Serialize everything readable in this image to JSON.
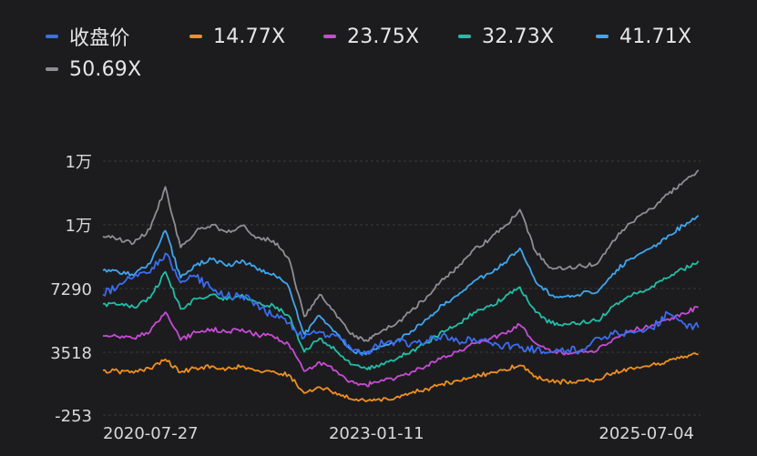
{
  "chart_data": {
    "type": "line",
    "x_ticks": [
      "2020-07-27",
      "2023-01-11",
      "2025-07-04"
    ],
    "y_ticks": [
      "1万",
      "1万",
      "7290",
      "3518",
      "-253"
    ],
    "ylim": [
      -253,
      14831
    ],
    "grid": true,
    "legend_position": "top",
    "series": [
      {
        "name": "收盘价",
        "color": "#3b6df0",
        "points": [
          [
            "2020-07-27",
            6900
          ],
          [
            "2020-09-15",
            7450
          ],
          [
            "2020-11-05",
            7950
          ],
          [
            "2020-12-29",
            8200
          ],
          [
            "2021-02-17",
            9350
          ],
          [
            "2021-04-08",
            7600
          ],
          [
            "2021-05-28",
            7950
          ],
          [
            "2021-07-19",
            7250
          ],
          [
            "2021-09-07",
            6800
          ],
          [
            "2021-10-27",
            6800
          ],
          [
            "2021-12-17",
            6300
          ],
          [
            "2022-02-07",
            5600
          ],
          [
            "2022-03-29",
            5200
          ],
          [
            "2022-05-19",
            4350
          ],
          [
            "2022-07-08",
            4700
          ],
          [
            "2022-08-29",
            4450
          ],
          [
            "2022-10-18",
            3750
          ],
          [
            "2022-12-08",
            3450
          ],
          [
            "2023-01-11",
            3900
          ],
          [
            "2023-03-16",
            4150
          ],
          [
            "2023-05-05",
            4000
          ],
          [
            "2023-06-26",
            4200
          ],
          [
            "2023-08-15",
            4500
          ],
          [
            "2023-10-05",
            4150
          ],
          [
            "2023-11-27",
            4300
          ],
          [
            "2024-01-16",
            4050
          ],
          [
            "2024-03-06",
            3900
          ],
          [
            "2024-04-26",
            3750
          ],
          [
            "2024-06-17",
            3600
          ],
          [
            "2024-08-06",
            3500
          ],
          [
            "2024-09-25",
            3550
          ],
          [
            "2024-11-15",
            3650
          ],
          [
            "2025-01-06",
            4350
          ],
          [
            "2025-02-25",
            4550
          ],
          [
            "2025-04-16",
            4650
          ],
          [
            "2025-07-04",
            4900
          ],
          [
            "2025-08-25",
            5800
          ],
          [
            "2025-10-14",
            5200
          ],
          [
            "2025-12-03",
            4950
          ]
        ]
      },
      {
        "name": "14.77X",
        "color": "#f0901e",
        "points": [
          [
            "2020-07-27",
            2400
          ],
          [
            "2020-09-15",
            2350
          ],
          [
            "2020-11-05",
            2250
          ],
          [
            "2020-12-29",
            2500
          ],
          [
            "2021-02-17",
            3050
          ],
          [
            "2021-04-08",
            2300
          ],
          [
            "2021-05-28",
            2550
          ],
          [
            "2021-07-19",
            2650
          ],
          [
            "2021-09-07",
            2500
          ],
          [
            "2021-10-27",
            2650
          ],
          [
            "2021-12-17",
            2400
          ],
          [
            "2022-02-07",
            2350
          ],
          [
            "2022-03-29",
            2150
          ],
          [
            "2022-05-19",
            1050
          ],
          [
            "2022-07-08",
            1400
          ],
          [
            "2022-08-29",
            1100
          ],
          [
            "2022-10-18",
            700
          ],
          [
            "2022-12-08",
            550
          ],
          [
            "2023-01-11",
            650
          ],
          [
            "2023-03-16",
            800
          ],
          [
            "2023-05-05",
            1050
          ],
          [
            "2023-06-26",
            1300
          ],
          [
            "2023-08-15",
            1600
          ],
          [
            "2023-10-05",
            1800
          ],
          [
            "2023-11-27",
            2100
          ],
          [
            "2024-01-16",
            2200
          ],
          [
            "2024-03-06",
            2450
          ],
          [
            "2024-04-26",
            2700
          ],
          [
            "2024-06-17",
            2050
          ],
          [
            "2024-08-06",
            1750
          ],
          [
            "2024-09-25",
            1700
          ],
          [
            "2024-11-15",
            1800
          ],
          [
            "2025-01-06",
            1850
          ],
          [
            "2025-02-25",
            2250
          ],
          [
            "2025-04-16",
            2500
          ],
          [
            "2025-07-04",
            2750
          ],
          [
            "2025-08-25",
            2950
          ],
          [
            "2025-10-14",
            3150
          ],
          [
            "2025-12-03",
            3350
          ]
        ]
      },
      {
        "name": "23.75X",
        "color": "#c74bd6",
        "points": [
          [
            "2020-07-27",
            4450
          ],
          [
            "2020-09-15",
            4400
          ],
          [
            "2020-11-05",
            4300
          ],
          [
            "2020-12-29",
            4700
          ],
          [
            "2021-02-17",
            5850
          ],
          [
            "2021-04-08",
            4200
          ],
          [
            "2021-05-28",
            4650
          ],
          [
            "2021-07-19",
            4850
          ],
          [
            "2021-09-07",
            4650
          ],
          [
            "2021-10-27",
            4850
          ],
          [
            "2021-12-17",
            4500
          ],
          [
            "2022-02-07",
            4400
          ],
          [
            "2022-03-29",
            3950
          ],
          [
            "2022-05-19",
            2350
          ],
          [
            "2022-07-08",
            2900
          ],
          [
            "2022-08-29",
            2400
          ],
          [
            "2022-10-18",
            1750
          ],
          [
            "2022-12-08",
            1550
          ],
          [
            "2023-01-11",
            1700
          ],
          [
            "2023-03-16",
            1950
          ],
          [
            "2023-05-05",
            2300
          ],
          [
            "2023-06-26",
            2700
          ],
          [
            "2023-08-15",
            3200
          ],
          [
            "2023-10-05",
            3500
          ],
          [
            "2023-11-27",
            4000
          ],
          [
            "2024-01-16",
            4250
          ],
          [
            "2024-03-06",
            4600
          ],
          [
            "2024-04-26",
            5100
          ],
          [
            "2024-06-17",
            4000
          ],
          [
            "2024-08-06",
            3500
          ],
          [
            "2024-09-25",
            3450
          ],
          [
            "2024-11-15",
            3550
          ],
          [
            "2025-01-06",
            3600
          ],
          [
            "2025-02-25",
            4250
          ],
          [
            "2025-04-16",
            4700
          ],
          [
            "2025-07-04",
            5100
          ],
          [
            "2025-08-25",
            5450
          ],
          [
            "2025-10-14",
            5800
          ],
          [
            "2025-12-03",
            6150
          ]
        ]
      },
      {
        "name": "32.73X",
        "color": "#1fbfa8",
        "points": [
          [
            "2020-07-27",
            6350
          ],
          [
            "2020-09-15",
            6300
          ],
          [
            "2020-11-05",
            6150
          ],
          [
            "2020-12-29",
            6700
          ],
          [
            "2021-02-17",
            8250
          ],
          [
            "2021-04-08",
            6050
          ],
          [
            "2021-05-28",
            6650
          ],
          [
            "2021-07-19",
            6900
          ],
          [
            "2021-09-07",
            6600
          ],
          [
            "2021-10-27",
            6900
          ],
          [
            "2021-12-17",
            6400
          ],
          [
            "2022-02-07",
            6250
          ],
          [
            "2022-03-29",
            5650
          ],
          [
            "2022-05-19",
            3500
          ],
          [
            "2022-07-08",
            4300
          ],
          [
            "2022-08-29",
            3600
          ],
          [
            "2022-10-18",
            2750
          ],
          [
            "2022-12-08",
            2500
          ],
          [
            "2023-01-11",
            2700
          ],
          [
            "2023-03-16",
            3050
          ],
          [
            "2023-05-05",
            3550
          ],
          [
            "2023-06-26",
            4050
          ],
          [
            "2023-08-15",
            4750
          ],
          [
            "2023-10-05",
            5150
          ],
          [
            "2023-11-27",
            5850
          ],
          [
            "2024-01-16",
            6200
          ],
          [
            "2024-03-06",
            6700
          ],
          [
            "2024-04-26",
            7350
          ],
          [
            "2024-06-17",
            5850
          ],
          [
            "2024-08-06",
            5200
          ],
          [
            "2024-09-25",
            5150
          ],
          [
            "2024-11-15",
            5250
          ],
          [
            "2025-01-06",
            5350
          ],
          [
            "2025-02-25",
            6200
          ],
          [
            "2025-04-16",
            6800
          ],
          [
            "2025-07-04",
            7400
          ],
          [
            "2025-08-25",
            7900
          ],
          [
            "2025-10-14",
            8400
          ],
          [
            "2025-12-03",
            8900
          ]
        ]
      },
      {
        "name": "41.71X",
        "color": "#3fa7ef",
        "points": [
          [
            "2020-07-27",
            8350
          ],
          [
            "2020-09-15",
            8250
          ],
          [
            "2020-11-05",
            8050
          ],
          [
            "2020-12-29",
            8750
          ],
          [
            "2021-02-17",
            10700
          ],
          [
            "2021-04-08",
            7900
          ],
          [
            "2021-05-28",
            8650
          ],
          [
            "2021-07-19",
            9000
          ],
          [
            "2021-09-07",
            8600
          ],
          [
            "2021-10-27",
            8950
          ],
          [
            "2021-12-17",
            8350
          ],
          [
            "2022-02-07",
            8150
          ],
          [
            "2022-03-29",
            7350
          ],
          [
            "2022-05-19",
            4550
          ],
          [
            "2022-07-08",
            5650
          ],
          [
            "2022-08-29",
            4700
          ],
          [
            "2022-10-18",
            3650
          ],
          [
            "2022-12-08",
            3350
          ],
          [
            "2023-01-11",
            3650
          ],
          [
            "2023-03-16",
            4100
          ],
          [
            "2023-05-05",
            4750
          ],
          [
            "2023-06-26",
            5450
          ],
          [
            "2023-08-15",
            6300
          ],
          [
            "2023-10-05",
            6850
          ],
          [
            "2023-11-27",
            7700
          ],
          [
            "2024-01-16",
            8150
          ],
          [
            "2024-03-06",
            8800
          ],
          [
            "2024-04-26",
            9650
          ],
          [
            "2024-06-17",
            7650
          ],
          [
            "2024-08-06",
            6850
          ],
          [
            "2024-09-25",
            6800
          ],
          [
            "2024-11-15",
            6950
          ],
          [
            "2025-01-06",
            7050
          ],
          [
            "2025-02-25",
            8150
          ],
          [
            "2025-04-16",
            8950
          ],
          [
            "2025-07-04",
            9700
          ],
          [
            "2025-08-25",
            10400
          ],
          [
            "2025-10-14",
            11000
          ],
          [
            "2025-12-03",
            11600
          ]
        ]
      },
      {
        "name": "50.69X",
        "color": "#8e8e93",
        "points": [
          [
            "2020-07-27",
            10350
          ],
          [
            "2020-09-15",
            10200
          ],
          [
            "2020-11-05",
            9950
          ],
          [
            "2020-12-29",
            10800
          ],
          [
            "2021-02-17",
            13300
          ],
          [
            "2021-04-08",
            9700
          ],
          [
            "2021-05-28",
            10650
          ],
          [
            "2021-07-19",
            11050
          ],
          [
            "2021-09-07",
            10600
          ],
          [
            "2021-10-27",
            11000
          ],
          [
            "2021-12-17",
            10300
          ],
          [
            "2022-02-07",
            10100
          ],
          [
            "2022-03-29",
            9050
          ],
          [
            "2022-05-19",
            5600
          ],
          [
            "2022-07-08",
            6900
          ],
          [
            "2022-08-29",
            5800
          ],
          [
            "2022-10-18",
            4550
          ],
          [
            "2022-12-08",
            4200
          ],
          [
            "2023-01-11",
            4550
          ],
          [
            "2023-03-16",
            5150
          ],
          [
            "2023-05-05",
            5950
          ],
          [
            "2023-06-26",
            6800
          ],
          [
            "2023-08-15",
            7850
          ],
          [
            "2023-10-05",
            8500
          ],
          [
            "2023-11-27",
            9600
          ],
          [
            "2024-01-16",
            10150
          ],
          [
            "2024-03-06",
            10950
          ],
          [
            "2024-04-26",
            11950
          ],
          [
            "2024-06-17",
            9450
          ],
          [
            "2024-08-06",
            8500
          ],
          [
            "2024-09-25",
            8450
          ],
          [
            "2024-11-15",
            8600
          ],
          [
            "2025-01-06",
            8750
          ],
          [
            "2025-02-25",
            10100
          ],
          [
            "2025-04-16",
            11100
          ],
          [
            "2025-07-04",
            12000
          ],
          [
            "2025-08-25",
            12850
          ],
          [
            "2025-10-14",
            13600
          ],
          [
            "2025-12-03",
            14300
          ]
        ]
      }
    ]
  }
}
